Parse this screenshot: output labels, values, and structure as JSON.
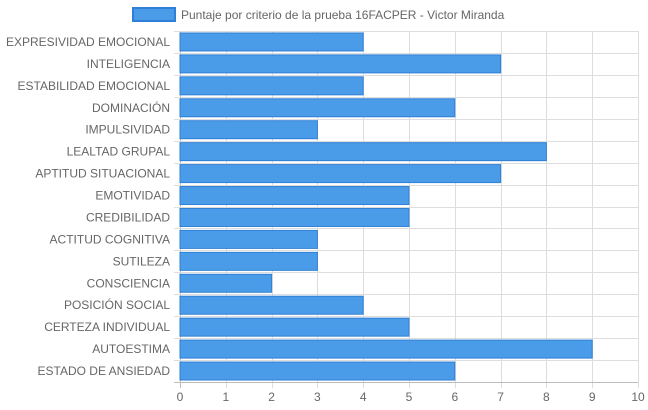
{
  "chart_data": {
    "type": "bar",
    "orientation": "horizontal",
    "categories": [
      "EXPRESIVIDAD EMOCIONAL",
      "INTELIGENCIA",
      "ESTABILIDAD EMOCIONAL",
      "DOMINACIÓN",
      "IMPULSIVIDAD",
      "LEALTAD GRUPAL",
      "APTITUD SITUACIONAL",
      "EMOTIVIDAD",
      "CREDIBILIDAD",
      "ACTITUD COGNITIVA",
      "SUTILEZA",
      "CONSCIENCIA",
      "POSICIÓN SOCIAL",
      "CERTEZA INDIVIDUAL",
      "AUTOESTIMA",
      "ESTADO DE ANSIEDAD"
    ],
    "series": [
      {
        "name": "Puntaje por criterio de la prueba 16FACPER - Victor Miranda",
        "values": [
          4,
          7,
          4,
          6,
          3,
          8,
          7,
          5,
          5,
          3,
          3,
          2,
          4,
          5,
          9,
          6
        ]
      }
    ],
    "xlim": [
      0,
      10
    ],
    "xticks": [
      0,
      1,
      2,
      3,
      4,
      5,
      6,
      7,
      8,
      9,
      10
    ],
    "grid": true,
    "legend": "top",
    "colors": {
      "bar_fill": "#4b9ce8",
      "bar_stroke": "#2f7fd6",
      "grid": "#dddddd",
      "axis_text": "#666666"
    }
  }
}
